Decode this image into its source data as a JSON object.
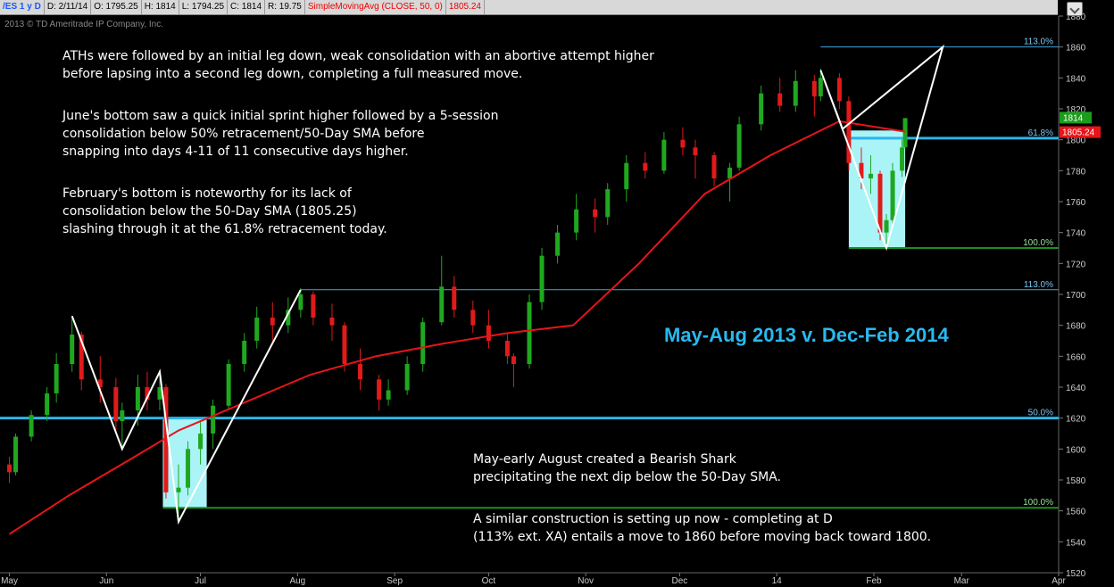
{
  "header": {
    "symbol": "/ES 1 y D",
    "date": "D: 2/11/14",
    "open": "O: 1795.25",
    "high": "H: 1814",
    "low": "L: 1794.25",
    "close": "C: 1814",
    "range": "R: 19.75",
    "study": "SimpleMovingAvg (CLOSE, 50, 0)",
    "study_value": "1805.24"
  },
  "copyright": "2013 © TD Ameritrade IP Company, Inc.",
  "annotations": {
    "p1": "ATHs were followed by an initial leg down, weak consolidation with an abortive attempt higher\nbefore lapsing into a second leg down, completing a full measured move.",
    "p2": "June's bottom saw a quick initial sprint higher followed by a 5-session\nconsolidation below 50% retracement/50-Day SMA before\nsnapping into days 4-11 of 11 consecutive days higher.",
    "p3": "February's bottom is noteworthy for its lack of\nconsolidation below the 50-Day SMA (1805.25)\nslashing through it at the 61.8% retracement today.",
    "title": "May-Aug 2013 v. Dec-Feb 2014",
    "p4": "May-early August created a Bearish Shark\nprecipitating the next dip below the 50-Day SMA.",
    "p5": "A similar construction is setting up now - completing at D\n(113% ext. XA) entails a move to 1860 before moving back toward 1800."
  },
  "colors": {
    "up": "#1fa81f",
    "down": "#e11a1a",
    "sma": "#e8141a",
    "fib_thin": "#3aa6e6",
    "fib_thick": "#2bb5ea",
    "fib_green": "#1f8f1f",
    "box": "#aaf4f7",
    "pattern": "#ffffff",
    "title": "#29b9ef",
    "price_badge": "#1c9c1c",
    "sma_badge": "#e8141a"
  },
  "chart_data": {
    "type": "candlestick",
    "ylim": [
      1520,
      1880
    ],
    "yticks": [
      1520,
      1540,
      1560,
      1580,
      1600,
      1620,
      1640,
      1660,
      1680,
      1700,
      1720,
      1740,
      1760,
      1780,
      1800,
      1820,
      1840,
      1860,
      1880
    ],
    "xticks": [
      "May",
      "Jun",
      "Jul",
      "Aug",
      "Sep",
      "Oct",
      "Nov",
      "Dec",
      "14",
      "Feb",
      "Mar",
      "Apr"
    ],
    "last_price": "1814",
    "sma_last": "1805.24",
    "fib_levels": [
      {
        "label": "113.0%",
        "value": 1860,
        "group": "2014"
      },
      {
        "label": "61.8%",
        "value": 1801,
        "group": "2014"
      },
      {
        "label": "100.0%",
        "value": 1730,
        "group": "2014"
      },
      {
        "label": "113.0%",
        "value": 1703,
        "group": "2013"
      },
      {
        "label": "50.0%",
        "value": 1620,
        "group": "2013"
      },
      {
        "label": "100.0%",
        "value": 1562,
        "group": "2013"
      }
    ],
    "pattern_2013": [
      [
        "2013-05-21",
        1686
      ],
      [
        "2013-06-06",
        1600
      ],
      [
        "2013-06-18",
        1650
      ],
      [
        "2013-06-24",
        1553
      ],
      [
        "2013-08-02",
        1703
      ],
      [
        "2013-06-24",
        1553
      ]
    ],
    "pattern_2014": [
      [
        "2014-01-15",
        1845
      ],
      [
        "2014-01-22",
        1807
      ],
      [
        "2014-02-23",
        1860
      ],
      [
        "2014-02-05",
        1730
      ],
      [
        "2014-01-15",
        1845
      ]
    ],
    "zones": [
      {
        "from": "2013-06-19",
        "to": "2013-07-03",
        "low": 1562,
        "high": 1620
      },
      {
        "from": "2014-01-24",
        "to": "2014-02-11",
        "low": 1730,
        "high": 1806
      }
    ],
    "candles": [
      [
        "2013-05-01",
        1590,
        1595,
        1578,
        1585
      ],
      [
        "2013-05-03",
        1585,
        1610,
        1583,
        1608
      ],
      [
        "2013-05-08",
        1608,
        1625,
        1605,
        1622
      ],
      [
        "2013-05-13",
        1622,
        1640,
        1618,
        1636
      ],
      [
        "2013-05-16",
        1636,
        1662,
        1630,
        1655
      ],
      [
        "2013-05-21",
        1655,
        1686,
        1650,
        1674
      ],
      [
        "2013-05-24",
        1674,
        1676,
        1638,
        1645
      ],
      [
        "2013-05-30",
        1645,
        1660,
        1630,
        1640
      ],
      [
        "2013-06-04",
        1640,
        1646,
        1610,
        1618
      ],
      [
        "2013-06-06",
        1618,
        1630,
        1600,
        1625
      ],
      [
        "2013-06-11",
        1625,
        1648,
        1615,
        1640
      ],
      [
        "2013-06-14",
        1640,
        1650,
        1625,
        1632
      ],
      [
        "2013-06-18",
        1632,
        1651,
        1625,
        1640
      ],
      [
        "2013-06-20",
        1640,
        1642,
        1568,
        1572
      ],
      [
        "2013-06-24",
        1572,
        1590,
        1553,
        1575
      ],
      [
        "2013-06-27",
        1575,
        1605,
        1570,
        1600
      ],
      [
        "2013-07-01",
        1600,
        1618,
        1590,
        1610
      ],
      [
        "2013-07-05",
        1610,
        1632,
        1600,
        1628
      ],
      [
        "2013-07-10",
        1628,
        1658,
        1625,
        1655
      ],
      [
        "2013-07-15",
        1655,
        1675,
        1650,
        1670
      ],
      [
        "2013-07-19",
        1670,
        1692,
        1665,
        1685
      ],
      [
        "2013-07-24",
        1685,
        1695,
        1670,
        1680
      ],
      [
        "2013-07-29",
        1680,
        1698,
        1675,
        1690
      ],
      [
        "2013-08-02",
        1690,
        1704,
        1685,
        1700
      ],
      [
        "2013-08-06",
        1700,
        1702,
        1680,
        1685
      ],
      [
        "2013-08-12",
        1685,
        1694,
        1670,
        1680
      ],
      [
        "2013-08-16",
        1680,
        1682,
        1650,
        1655
      ],
      [
        "2013-08-21",
        1655,
        1665,
        1638,
        1645
      ],
      [
        "2013-08-27",
        1645,
        1648,
        1625,
        1632
      ],
      [
        "2013-08-30",
        1632,
        1645,
        1628,
        1638
      ],
      [
        "2013-09-05",
        1638,
        1660,
        1635,
        1655
      ],
      [
        "2013-09-10",
        1655,
        1685,
        1650,
        1682
      ],
      [
        "2013-09-16",
        1682,
        1725,
        1680,
        1705
      ],
      [
        "2013-09-20",
        1705,
        1712,
        1685,
        1690
      ],
      [
        "2013-09-26",
        1690,
        1696,
        1675,
        1680
      ],
      [
        "2013-10-01",
        1680,
        1690,
        1665,
        1670
      ],
      [
        "2013-10-07",
        1670,
        1675,
        1655,
        1660
      ],
      [
        "2013-10-09",
        1660,
        1662,
        1640,
        1655
      ],
      [
        "2013-10-14",
        1655,
        1700,
        1652,
        1695
      ],
      [
        "2013-10-18",
        1695,
        1730,
        1690,
        1725
      ],
      [
        "2013-10-23",
        1725,
        1745,
        1720,
        1740
      ],
      [
        "2013-10-29",
        1740,
        1765,
        1735,
        1755
      ],
      [
        "2013-11-04",
        1755,
        1762,
        1740,
        1750
      ],
      [
        "2013-11-08",
        1750,
        1772,
        1745,
        1768
      ],
      [
        "2013-11-14",
        1768,
        1790,
        1760,
        1785
      ],
      [
        "2013-11-20",
        1785,
        1792,
        1775,
        1780
      ],
      [
        "2013-11-26",
        1780,
        1805,
        1778,
        1800
      ],
      [
        "2013-12-02",
        1800,
        1808,
        1790,
        1795
      ],
      [
        "2013-12-06",
        1795,
        1800,
        1775,
        1790
      ],
      [
        "2013-12-12",
        1790,
        1792,
        1770,
        1775
      ],
      [
        "2013-12-17",
        1775,
        1785,
        1760,
        1782
      ],
      [
        "2013-12-20",
        1782,
        1815,
        1780,
        1810
      ],
      [
        "2013-12-27",
        1810,
        1835,
        1806,
        1830
      ],
      [
        "2014-01-02",
        1830,
        1840,
        1818,
        1822
      ],
      [
        "2014-01-07",
        1822,
        1845,
        1818,
        1838
      ],
      [
        "2014-01-13",
        1838,
        1842,
        1815,
        1828
      ],
      [
        "2014-01-15",
        1828,
        1846,
        1825,
        1840
      ],
      [
        "2014-01-21",
        1840,
        1843,
        1820,
        1825
      ],
      [
        "2014-01-24",
        1825,
        1828,
        1780,
        1785
      ],
      [
        "2014-01-28",
        1785,
        1795,
        1768,
        1775
      ],
      [
        "2014-01-31",
        1775,
        1790,
        1765,
        1778
      ],
      [
        "2014-02-03",
        1778,
        1780,
        1735,
        1740
      ],
      [
        "2014-02-05",
        1740,
        1752,
        1730,
        1748
      ],
      [
        "2014-02-07",
        1748,
        1785,
        1745,
        1780
      ],
      [
        "2014-02-10",
        1780,
        1800,
        1776,
        1795
      ],
      [
        "2014-02-11",
        1795.25,
        1814,
        1794.25,
        1814
      ]
    ],
    "sma": [
      [
        "2013-05-01",
        1545
      ],
      [
        "2013-05-20",
        1570
      ],
      [
        "2013-06-10",
        1595
      ],
      [
        "2013-06-24",
        1612
      ],
      [
        "2013-07-15",
        1630
      ],
      [
        "2013-08-05",
        1648
      ],
      [
        "2013-08-26",
        1660
      ],
      [
        "2013-09-16",
        1668
      ],
      [
        "2013-10-07",
        1675
      ],
      [
        "2013-10-28",
        1680
      ],
      [
        "2013-11-18",
        1720
      ],
      [
        "2013-12-09",
        1765
      ],
      [
        "2013-12-30",
        1790
      ],
      [
        "2014-01-21",
        1812
      ],
      [
        "2014-02-11",
        1805.24
      ]
    ]
  }
}
